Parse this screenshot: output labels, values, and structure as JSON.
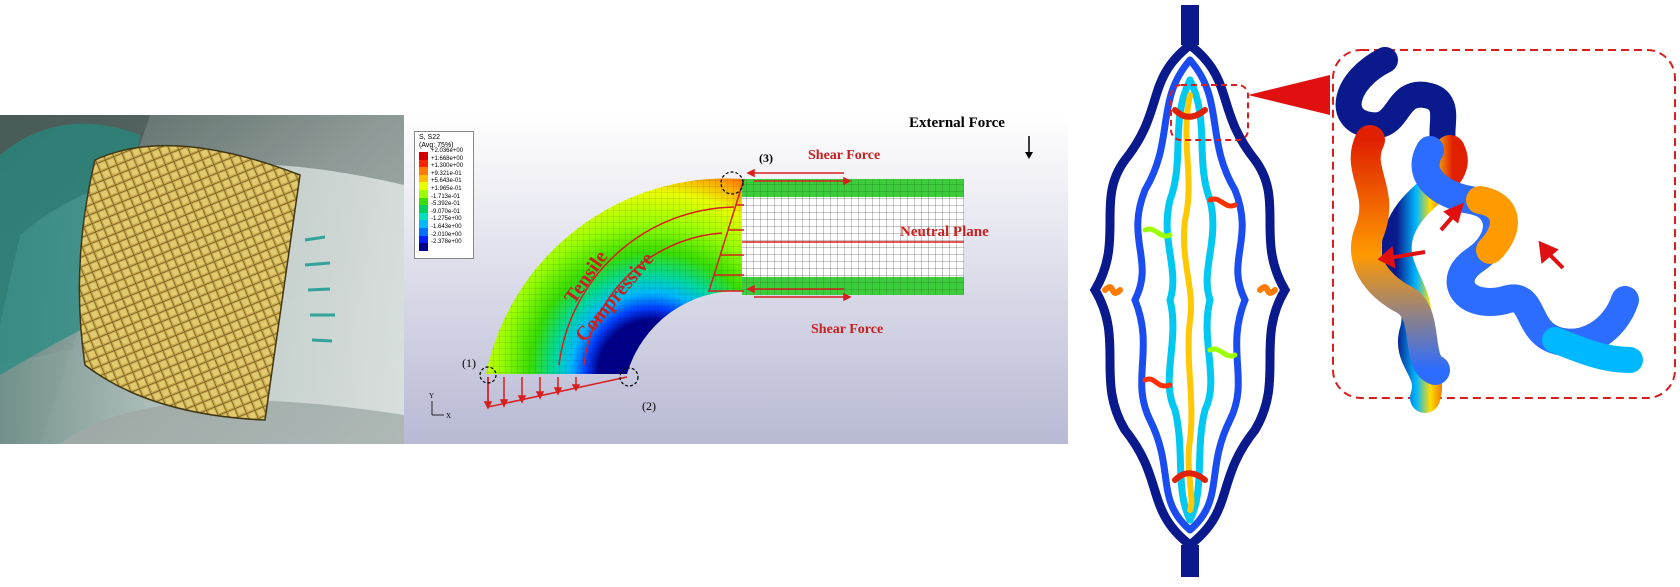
{
  "fea": {
    "legend": {
      "title": "S, S22",
      "subtitle": "(Avg: 75%)",
      "values": [
        "+2.036e+00",
        "+1.668e+00",
        "+1.300e+00",
        "+9.321e-01",
        "+5.643e-01",
        "+1.965e-01",
        "-1.713e-01",
        "-5.392e-01",
        "-9.070e-01",
        "-1.275e+00",
        "-1.643e+00",
        "-2.010e+00",
        "-2.378e+00"
      ],
      "colors": [
        "#d40000",
        "#ff2200",
        "#ff7a00",
        "#ffbf00",
        "#e8ff00",
        "#9cff00",
        "#3cdd00",
        "#00d060",
        "#00e0c0",
        "#00b8ff",
        "#0070ff",
        "#0020ff",
        "#000088"
      ]
    },
    "labels": {
      "external_force": "External Force",
      "shear_force_top": "Shear Force",
      "shear_force_bottom": "Shear Force",
      "neutral_plane": "Neutral Plane",
      "tensile": "Tensile",
      "compressive": "Compressive",
      "point1": "(1)",
      "point2": "(2)",
      "point3": "(3)",
      "axis_y": "Y",
      "axis_x": "X"
    }
  },
  "colors": {
    "annotation_red": "#d81e1e",
    "dark_blue": "#0a1a8c",
    "mesh_green": "#38c838",
    "photo_bg": "#7d8a86",
    "gold": "#c9a43a"
  },
  "icons": [
    "force-arrow-icon",
    "zoom-callout-icon",
    "strain-arrow-icon"
  ]
}
